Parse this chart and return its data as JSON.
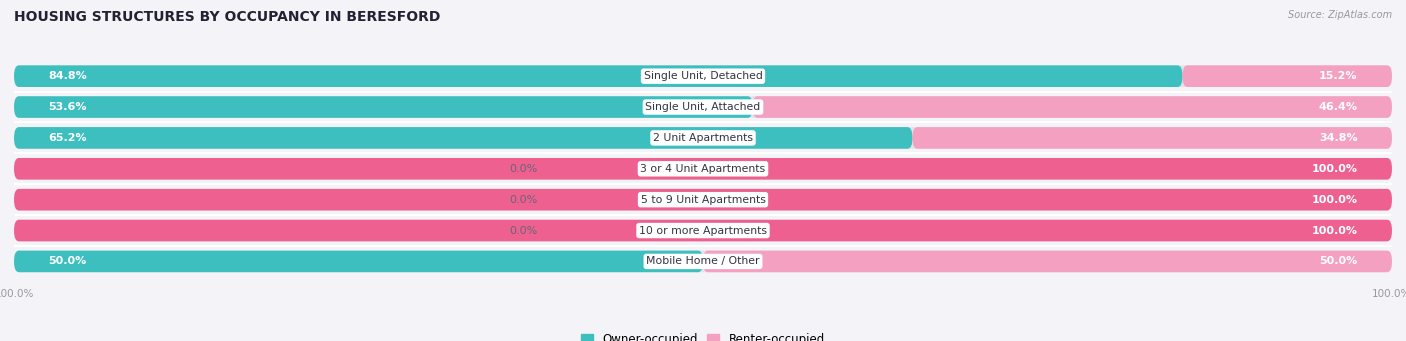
{
  "title": "HOUSING STRUCTURES BY OCCUPANCY IN BERESFORD",
  "source": "Source: ZipAtlas.com",
  "categories": [
    "Single Unit, Detached",
    "Single Unit, Attached",
    "2 Unit Apartments",
    "3 or 4 Unit Apartments",
    "5 to 9 Unit Apartments",
    "10 or more Apartments",
    "Mobile Home / Other"
  ],
  "owner_pct": [
    84.8,
    53.6,
    65.2,
    0.0,
    0.0,
    0.0,
    50.0
  ],
  "renter_pct": [
    15.2,
    46.4,
    34.8,
    100.0,
    100.0,
    100.0,
    50.0
  ],
  "owner_color": "#3DBFBF",
  "renter_color_light": "#F4A0C0",
  "renter_color_dark": "#EE6090",
  "bar_bg_color": "#E2E2E8",
  "background_color": "#F4F4F8",
  "title_fontsize": 10,
  "label_fontsize": 8,
  "category_fontsize": 7.8,
  "bar_height": 0.7,
  "figwidth": 14.06,
  "figheight": 3.41
}
